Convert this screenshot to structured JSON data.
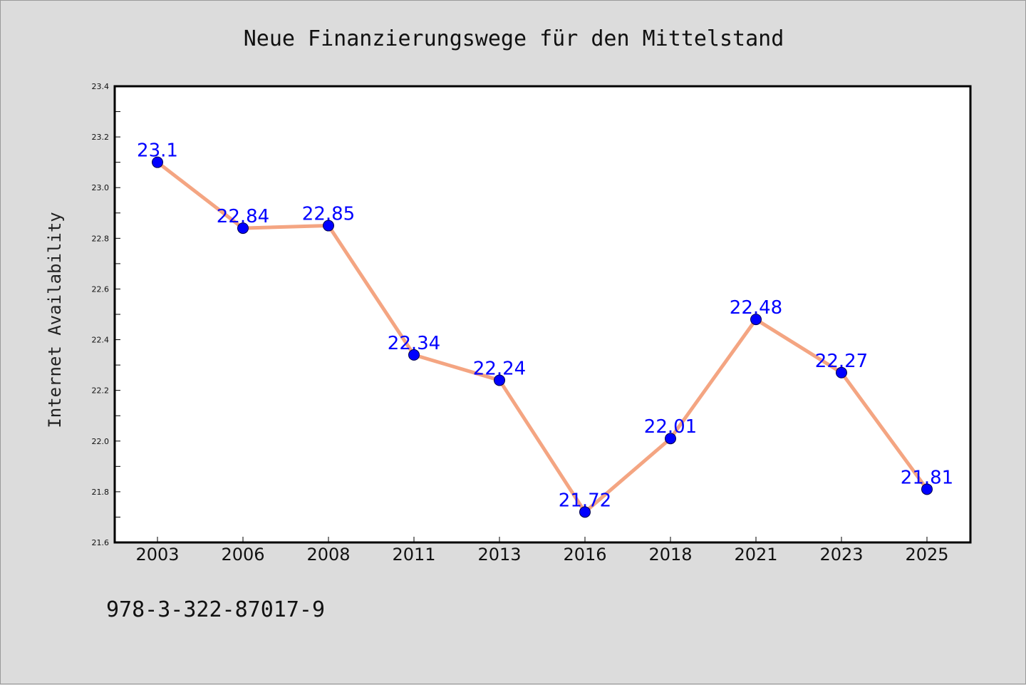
{
  "colors": {
    "background": "#dcdcdc",
    "plot_background": "#ffffff",
    "line": "#f4a582",
    "marker": "#0000ff",
    "label": "#0000ff"
  },
  "isbn": "978-3-322-87017-9",
  "chart_data": {
    "type": "line",
    "title": "Neue Finanzierungswege für den Mittelstand",
    "xlabel": "",
    "ylabel": "Internet Availability",
    "categories": [
      "2003",
      "2006",
      "2008",
      "2011",
      "2013",
      "2016",
      "2018",
      "2021",
      "2023",
      "2025"
    ],
    "series": [
      {
        "values": [
          23.1,
          22.84,
          22.85,
          22.34,
          22.24,
          21.72,
          22.01,
          22.48,
          22.27,
          21.81
        ],
        "labels": [
          "23.1",
          "22.84",
          "22.85",
          "22.34",
          "22.24",
          "21.72",
          "22.01",
          "22.48",
          "22.27",
          "21.81"
        ]
      }
    ],
    "ylim": [
      21.6,
      23.4
    ],
    "yticks": [
      "21.6",
      "21.8",
      "22.0",
      "22.2",
      "22.4",
      "22.6",
      "22.8",
      "23.0",
      "23.2",
      "23.4"
    ],
    "grid": false,
    "legend": "none"
  }
}
